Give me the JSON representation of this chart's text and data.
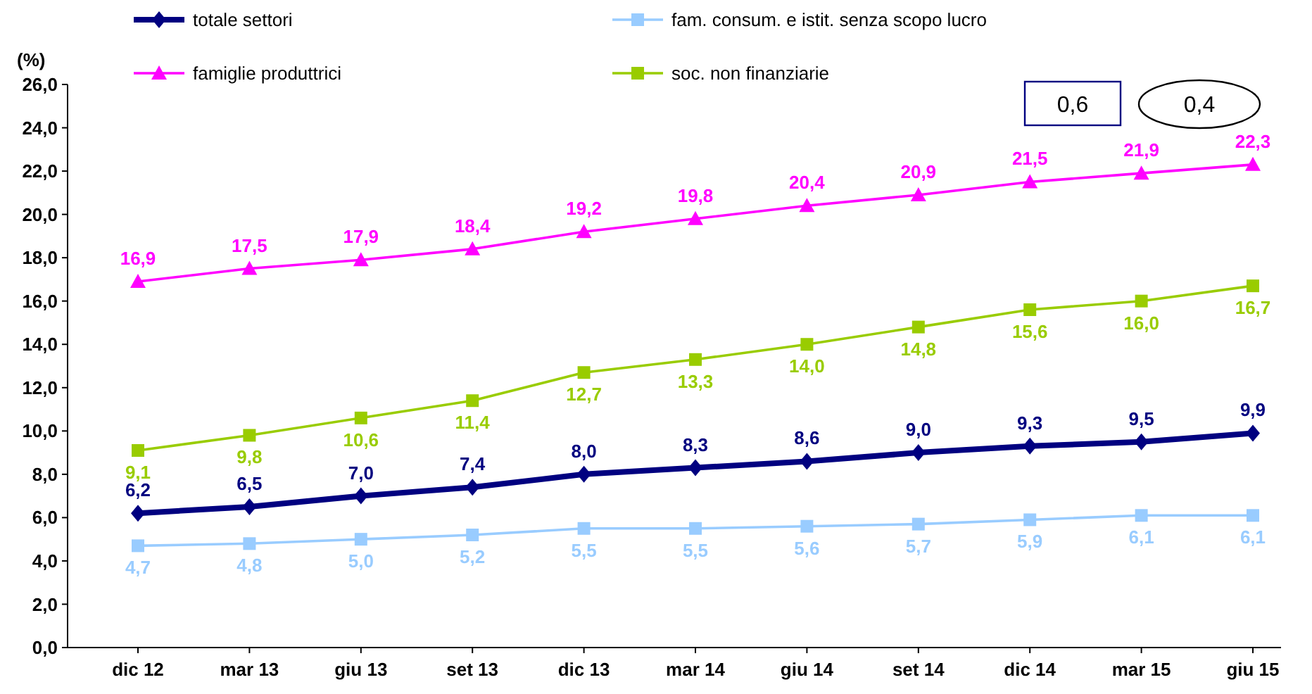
{
  "chart_data": {
    "type": "line",
    "ylabel": "(%)",
    "categories": [
      "dic 12",
      "mar 13",
      "giu 13",
      "set 13",
      "dic 13",
      "mar 14",
      "giu 14",
      "set 14",
      "dic 14",
      "mar 15",
      "giu 15"
    ],
    "series": [
      {
        "name": "totale settori",
        "color": "#000080",
        "marker": "diamond",
        "values": [
          6.2,
          6.5,
          7.0,
          7.4,
          8.0,
          8.3,
          8.6,
          9.0,
          9.3,
          9.5,
          9.9
        ],
        "value_labels": [
          "6,2",
          "6,5",
          "7,0",
          "7,4",
          "8,0",
          "8,3",
          "8,6",
          "9,0",
          "9,3",
          "9,5",
          "9,9"
        ]
      },
      {
        "name": "fam. consum. e istit. senza scopo lucro",
        "color": "#99ccff",
        "marker": "square",
        "values": [
          4.7,
          4.8,
          5.0,
          5.2,
          5.5,
          5.5,
          5.6,
          5.7,
          5.9,
          6.1,
          6.1
        ],
        "value_labels": [
          "4,7",
          "4,8",
          "5,0",
          "5,2",
          "5,5",
          "5,5",
          "5,6",
          "5,7",
          "5,9",
          "6,1",
          "6,1"
        ]
      },
      {
        "name": "famiglie produttrici",
        "color": "#ff00ff",
        "marker": "triangle",
        "values": [
          16.9,
          17.5,
          17.9,
          18.4,
          19.2,
          19.8,
          20.4,
          20.9,
          21.5,
          21.9,
          22.3
        ],
        "value_labels": [
          "16,9",
          "17,5",
          "17,9",
          "18,4",
          "19,2",
          "19,8",
          "20,4",
          "20,9",
          "21,5",
          "21,9",
          "22,3"
        ]
      },
      {
        "name": "soc. non finanziarie",
        "color": "#99cc00",
        "marker": "square",
        "values": [
          9.1,
          9.8,
          10.6,
          11.4,
          12.7,
          13.3,
          14.0,
          14.8,
          15.6,
          16.0,
          16.7
        ],
        "value_labels": [
          "9,1",
          "9,8",
          "10,6",
          "11,4",
          "12,7",
          "13,3",
          "14,0",
          "14,8",
          "15,6",
          "16,0",
          "16,7"
        ]
      }
    ],
    "ylim": [
      0,
      26
    ],
    "yticks": [
      {
        "value": 0,
        "label": "0,0"
      },
      {
        "value": 2,
        "label": "2,0"
      },
      {
        "value": 4,
        "label": "4,0"
      },
      {
        "value": 6,
        "label": "6,0"
      },
      {
        "value": 8,
        "label": "8,0"
      },
      {
        "value": 10,
        "label": "10,0"
      },
      {
        "value": 12,
        "label": "12,0"
      },
      {
        "value": 14,
        "label": "14,0"
      },
      {
        "value": 16,
        "label": "16,0"
      },
      {
        "value": 18,
        "label": "18,0"
      },
      {
        "value": 20,
        "label": "20,0"
      },
      {
        "value": 22,
        "label": "22,0"
      },
      {
        "value": 24,
        "label": "24,0"
      },
      {
        "value": 26,
        "label": "26,0"
      }
    ],
    "annotations": [
      "0,6",
      "0,4"
    ],
    "legend": "top",
    "grid": false
  }
}
